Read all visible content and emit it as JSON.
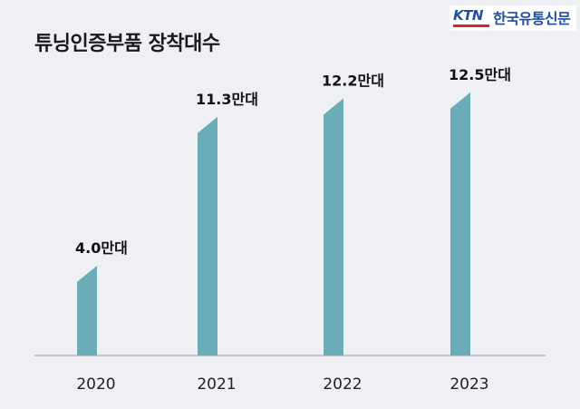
{
  "brand": {
    "logo_text": "KTN",
    "name": "한국유통신문",
    "accent_color": "#1f4fa0",
    "bar_color": "#d62828"
  },
  "chart_data": {
    "type": "bar",
    "title": "튜닝인증부품 장착대수",
    "categories": [
      "2020",
      "2021",
      "2022",
      "2023"
    ],
    "values": [
      4.0,
      11.3,
      12.2,
      12.5
    ],
    "data_labels": [
      "4.0만대",
      "11.3만대",
      "12.2만대",
      "12.5만대"
    ],
    "unit": "만대",
    "ylim": [
      0,
      14
    ],
    "bar_color": "#6aadb8",
    "grid": false,
    "legend": "none"
  }
}
